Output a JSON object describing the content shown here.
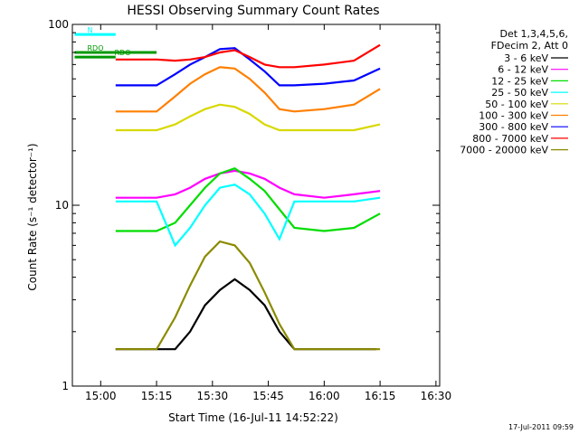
{
  "chart_data": {
    "type": "line",
    "title": "HESSI Observing Summary Count Rates",
    "xlabel": "Start Time (16-Jul-11 14:52:22)",
    "ylabel": "Count Rate (s⁻¹ detector⁻¹)",
    "y_scale": "log",
    "ylim": [
      1,
      100
    ],
    "xlim_minutes": [
      52.4,
      151.0
    ],
    "x_ticks": [
      {
        "label": "15:00",
        "min": 60
      },
      {
        "label": "15:15",
        "min": 75
      },
      {
        "label": "15:30",
        "min": 90
      },
      {
        "label": "15:45",
        "min": 105
      },
      {
        "label": "16:00",
        "min": 120
      },
      {
        "label": "16:15",
        "min": 135
      },
      {
        "label": "16:30",
        "min": 150
      }
    ],
    "y_ticks": [
      {
        "label": "1",
        "v": 1
      },
      {
        "label": "10",
        "v": 10
      },
      {
        "label": "100",
        "v": 100
      }
    ],
    "legend": {
      "header": [
        "Det 1,3,4,5,6,",
        "FDecim 2, Att 0"
      ],
      "placement": "right"
    },
    "series": [
      {
        "name": "3 - 6 keV",
        "color": "#000000",
        "x": [
          64,
          75,
          80,
          84,
          88,
          92,
          96,
          100,
          104,
          108,
          112,
          120,
          128,
          134
        ],
        "y": [
          1.6,
          1.6,
          1.6,
          2.0,
          2.8,
          3.4,
          3.9,
          3.4,
          2.8,
          2.0,
          1.6,
          1.6,
          1.6,
          1.6
        ]
      },
      {
        "name": "6 - 12 keV",
        "color": "#ff00ff",
        "x": [
          64,
          75,
          80,
          84,
          88,
          92,
          96,
          100,
          104,
          108,
          112,
          120,
          128,
          135
        ],
        "y": [
          11,
          11,
          11.5,
          12.5,
          14,
          15,
          15.5,
          15,
          14,
          12.5,
          11.5,
          11,
          11.5,
          12
        ]
      },
      {
        "name": "12 - 25 keV",
        "color": "#00dd00",
        "x": [
          64,
          75,
          80,
          84,
          88,
          92,
          96,
          100,
          104,
          108,
          112,
          120,
          128,
          135
        ],
        "y": [
          7.2,
          7.2,
          8,
          10,
          12.5,
          15,
          16,
          14,
          12,
          9.5,
          7.5,
          7.2,
          7.5,
          9
        ]
      },
      {
        "name": "25 - 50 keV",
        "color": "#00ffff",
        "x": [
          64,
          75,
          80,
          84,
          88,
          92,
          96,
          100,
          104,
          108,
          112,
          120,
          128,
          135
        ],
        "y": [
          10.5,
          10.5,
          6,
          7.5,
          10,
          12.5,
          13,
          11.5,
          9,
          6.5,
          10.5,
          10.5,
          10.5,
          11
        ]
      },
      {
        "name": "50 - 100 keV",
        "color": "#d8d800",
        "x": [
          64,
          75,
          80,
          84,
          88,
          92,
          96,
          100,
          104,
          108,
          112,
          120,
          128,
          135
        ],
        "y": [
          26,
          26,
          28,
          31,
          34,
          36,
          35,
          32,
          28,
          26,
          26,
          26,
          26,
          28
        ]
      },
      {
        "name": "100 - 300 keV",
        "color": "#ff7f00",
        "x": [
          64,
          75,
          80,
          84,
          88,
          92,
          96,
          100,
          104,
          108,
          112,
          120,
          128,
          135
        ],
        "y": [
          33,
          33,
          40,
          47,
          53,
          58,
          57,
          50,
          42,
          34,
          33,
          34,
          36,
          44
        ]
      },
      {
        "name": "300 - 800 keV",
        "color": "#0000ff",
        "x": [
          64,
          75,
          80,
          84,
          88,
          92,
          96,
          100,
          104,
          108,
          112,
          120,
          128,
          135
        ],
        "y": [
          46,
          46,
          53,
          60,
          66,
          73,
          74,
          64,
          55,
          46,
          46,
          47,
          49,
          57
        ]
      },
      {
        "name": "800 - 7000 keV",
        "color": "#ff0000",
        "x": [
          64,
          75,
          80,
          84,
          88,
          92,
          96,
          100,
          104,
          108,
          112,
          120,
          128,
          135
        ],
        "y": [
          64,
          64,
          63,
          64,
          66,
          70,
          72,
          66,
          60,
          58,
          58,
          60,
          63,
          77
        ]
      },
      {
        "name": "7000 - 20000 keV",
        "color": "#8b8b00",
        "x": [
          64,
          75,
          80,
          84,
          88,
          92,
          96,
          100,
          104,
          108,
          112,
          120,
          128,
          135
        ],
        "y": [
          1.6,
          1.6,
          2.4,
          3.6,
          5.2,
          6.3,
          6.0,
          4.8,
          3.3,
          2.2,
          1.6,
          1.6,
          1.6,
          1.6
        ]
      }
    ],
    "flags": [
      {
        "label": "RDO",
        "y": 70,
        "x_from": 53,
        "x_to": 75,
        "color": "#009900"
      },
      {
        "label": "RDO",
        "y": 66,
        "x_from": 53,
        "x_to": 64,
        "color": "#009900"
      },
      {
        "label": "N",
        "y": 88,
        "x_from": 53,
        "x_to": 64,
        "color": "#00ffff"
      }
    ],
    "annotations": {
      "timestamp": "17-Jul-2011 09:59"
    }
  }
}
